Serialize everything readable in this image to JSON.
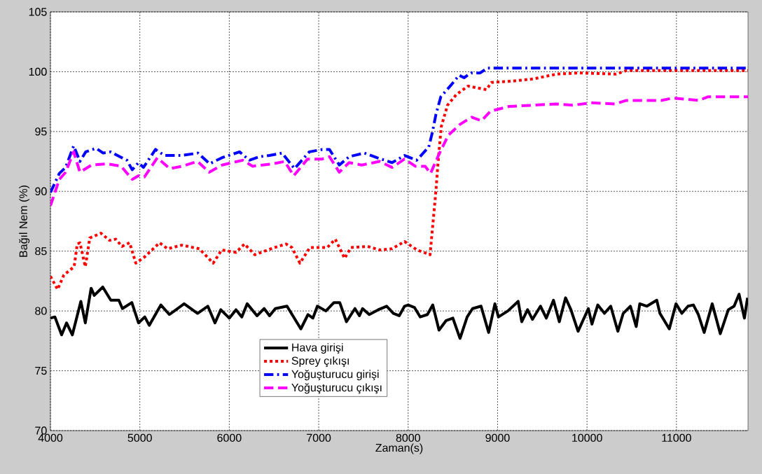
{
  "chart_data": {
    "type": "line",
    "xlabel": "Zaman(s)",
    "ylabel": "Bağıl Nem (%)",
    "xlim": [
      4000,
      11800
    ],
    "ylim": [
      70,
      105
    ],
    "xticks": [
      4000,
      5000,
      6000,
      7000,
      8000,
      9000,
      10000,
      11000
    ],
    "yticks": [
      70,
      75,
      80,
      85,
      90,
      95,
      100,
      105
    ],
    "grid": true,
    "legend": "bottom",
    "marker": "none",
    "series": [
      {
        "name": "Hava girişi",
        "color": "#000000",
        "line_style": "solid",
        "x": [
          4000,
          4050,
          4125,
          4180,
          4245,
          4340,
          4390,
          4455,
          4490,
          4585,
          4675,
          4765,
          4805,
          4910,
          4985,
          5055,
          5105,
          5235,
          5330,
          5495,
          5645,
          5760,
          5840,
          5905,
          6000,
          6075,
          6140,
          6200,
          6310,
          6390,
          6450,
          6515,
          6645,
          6800,
          6880,
          6935,
          6985,
          7080,
          7170,
          7235,
          7310,
          7405,
          7455,
          7490,
          7565,
          7665,
          7760,
          7835,
          7900,
          7960,
          8000,
          8070,
          8135,
          8215,
          8275,
          8345,
          8425,
          8500,
          8580,
          8660,
          8720,
          8815,
          8900,
          8970,
          9010,
          9115,
          9230,
          9270,
          9335,
          9390,
          9480,
          9545,
          9625,
          9690,
          9760,
          9820,
          9900,
          10015,
          10055,
          10120,
          10195,
          10265,
          10345,
          10405,
          10485,
          10550,
          10590,
          10670,
          10780,
          10815,
          10920,
          10995,
          11060,
          11130,
          11190,
          11245,
          11310,
          11400,
          11490,
          11580,
          11645,
          11700,
          11760,
          11795
        ],
        "values": [
          79.4,
          79.5,
          78.0,
          79.0,
          78.0,
          80.8,
          79.0,
          81.9,
          81.3,
          82.0,
          80.9,
          80.9,
          80.2,
          80.7,
          79.0,
          79.5,
          78.8,
          80.5,
          79.7,
          80.6,
          79.8,
          80.4,
          79.0,
          80.1,
          79.4,
          80.1,
          79.5,
          80.6,
          79.6,
          80.2,
          79.6,
          80.2,
          80.4,
          78.5,
          79.7,
          79.4,
          80.4,
          80.0,
          80.7,
          80.7,
          79.1,
          80.2,
          79.6,
          80.2,
          79.7,
          80.1,
          80.4,
          79.8,
          79.6,
          80.4,
          80.5,
          80.3,
          79.5,
          79.7,
          80.5,
          78.4,
          79.2,
          79.4,
          77.7,
          79.5,
          80.2,
          80.4,
          78.2,
          80.6,
          79.5,
          80.0,
          80.8,
          79.1,
          80.1,
          79.3,
          80.4,
          79.4,
          80.9,
          79.1,
          81.1,
          80.1,
          78.3,
          80.2,
          78.9,
          80.5,
          79.8,
          80.4,
          78.3,
          79.8,
          80.4,
          78.7,
          80.6,
          80.4,
          80.9,
          79.8,
          78.5,
          80.6,
          79.8,
          80.4,
          80.5,
          79.7,
          78.2,
          80.6,
          78.1,
          80.1,
          80.4,
          81.4,
          79.4,
          81.1
        ]
      },
      {
        "name": "Sprey çıkışı",
        "color": "#ff0000",
        "line_style": "dotted",
        "x": [
          4000,
          4080,
          4150,
          4265,
          4300,
          4330,
          4390,
          4440,
          4565,
          4660,
          4730,
          4800,
          4885,
          4955,
          5050,
          5220,
          5310,
          5470,
          5665,
          5820,
          5915,
          6075,
          6170,
          6285,
          6505,
          6635,
          6700,
          6790,
          6900,
          7095,
          7185,
          7290,
          7360,
          7545,
          7680,
          7820,
          7960,
          8100,
          8245,
          8310,
          8335,
          8370,
          8440,
          8540,
          8670,
          8875,
          8930,
          9145,
          9400,
          9660,
          9925,
          10320,
          10445,
          10950,
          11800
        ],
        "values": [
          82.9,
          81.8,
          83.0,
          83.7,
          85.6,
          85.7,
          83.7,
          86.1,
          86.5,
          85.9,
          86.0,
          85.4,
          85.7,
          84.0,
          84.5,
          85.7,
          85.2,
          85.5,
          85.2,
          84.0,
          85.1,
          84.9,
          85.6,
          84.7,
          85.3,
          85.6,
          85.3,
          84.0,
          85.3,
          85.3,
          86.0,
          84.4,
          85.3,
          85.4,
          85.1,
          85.2,
          85.8,
          85.1,
          84.7,
          90.0,
          92.5,
          95.4,
          97.2,
          98.1,
          98.8,
          98.5,
          99.1,
          99.2,
          99.4,
          99.8,
          99.9,
          99.8,
          100.1,
          100.1,
          100.1
        ]
      },
      {
        "name": "Yoğuşturucu girişi",
        "color": "#0000ff",
        "line_style": "dashdot",
        "x": [
          4000,
          4100,
          4170,
          4260,
          4330,
          4395,
          4510,
          4590,
          4675,
          4775,
          4855,
          4915,
          4985,
          5040,
          5175,
          5275,
          5470,
          5650,
          5780,
          5915,
          6115,
          6225,
          6340,
          6450,
          6590,
          6730,
          6895,
          7040,
          7120,
          7230,
          7340,
          7510,
          7655,
          7820,
          7960,
          8095,
          8230,
          8270,
          8310,
          8365,
          8470,
          8570,
          8625,
          8705,
          8805,
          8885,
          11800
        ],
        "values": [
          89.9,
          91.5,
          92.0,
          93.8,
          92.5,
          93.3,
          93.6,
          93.2,
          93.3,
          92.9,
          92.6,
          91.8,
          92.4,
          92.0,
          93.5,
          93.0,
          93.0,
          93.2,
          92.3,
          92.8,
          93.3,
          92.6,
          92.9,
          93.0,
          93.2,
          91.9,
          93.3,
          93.5,
          93.5,
          92.2,
          92.9,
          93.2,
          92.8,
          92.4,
          93.0,
          92.6,
          93.7,
          94.9,
          96.4,
          97.9,
          98.8,
          99.7,
          99.5,
          99.9,
          99.9,
          100.3,
          100.3
        ]
      },
      {
        "name": "Yoğuşturucu çıkışı",
        "color": "#ff00ff",
        "line_style": "dashed",
        "x": [
          4000,
          4100,
          4170,
          4260,
          4330,
          4460,
          4635,
          4790,
          4915,
          4985,
          5050,
          5195,
          5335,
          5475,
          5645,
          5775,
          5920,
          6150,
          6260,
          6485,
          6620,
          6720,
          6875,
          7040,
          7120,
          7230,
          7340,
          7480,
          7680,
          7820,
          7960,
          8080,
          8190,
          8250,
          8345,
          8450,
          8580,
          8710,
          8820,
          8920,
          9130,
          9390,
          9655,
          9840,
          10045,
          10310,
          10440,
          10830,
          10960,
          11250,
          11350,
          11800
        ],
        "values": [
          88.8,
          91.0,
          91.6,
          93.3,
          91.6,
          92.2,
          92.3,
          92.1,
          91.0,
          91.3,
          91.2,
          92.8,
          91.9,
          92.1,
          92.5,
          91.6,
          92.2,
          92.6,
          92.1,
          92.3,
          92.5,
          91.3,
          92.7,
          92.7,
          92.9,
          91.6,
          92.4,
          92.2,
          92.5,
          92.0,
          92.7,
          92.1,
          92.1,
          91.5,
          93.1,
          94.7,
          95.6,
          96.2,
          95.9,
          96.7,
          97.1,
          97.2,
          97.3,
          97.2,
          97.4,
          97.3,
          97.6,
          97.6,
          97.8,
          97.6,
          97.9,
          97.9
        ]
      }
    ]
  }
}
